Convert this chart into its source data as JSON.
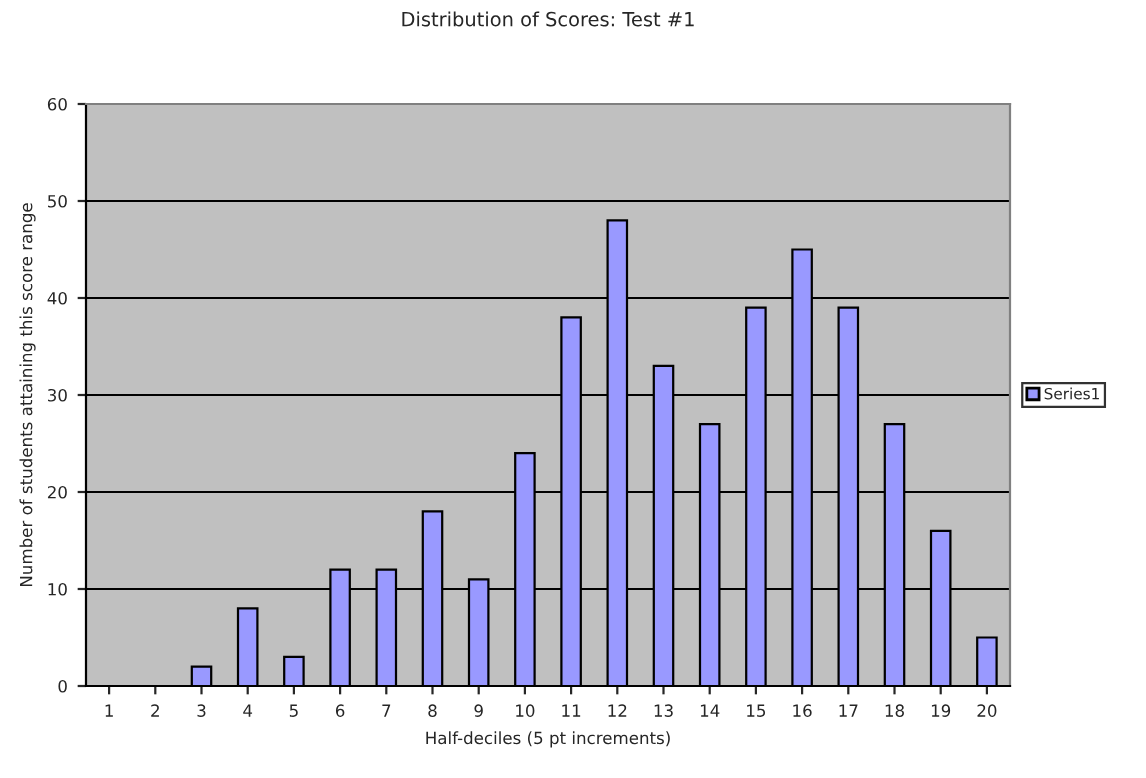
{
  "chart_data": {
    "type": "bar",
    "title": "Distribution of Scores: Test #1",
    "xlabel": "Half-deciles (5 pt increments)",
    "ylabel": "Number of students attaining this score range",
    "categories": [
      "1",
      "2",
      "3",
      "4",
      "5",
      "6",
      "7",
      "8",
      "9",
      "10",
      "11",
      "12",
      "13",
      "14",
      "15",
      "16",
      "17",
      "18",
      "19",
      "20"
    ],
    "series": [
      {
        "name": "Series1",
        "color": "#9999ff",
        "values": [
          0,
          0,
          2,
          8,
          3,
          12,
          12,
          18,
          11,
          24,
          38,
          48,
          33,
          27,
          39,
          45,
          39,
          27,
          16,
          5
        ]
      }
    ],
    "ylim": [
      0,
      60
    ],
    "yticks": [
      0,
      10,
      20,
      30,
      40,
      50,
      60
    ],
    "grid": "y",
    "legend": "right"
  }
}
